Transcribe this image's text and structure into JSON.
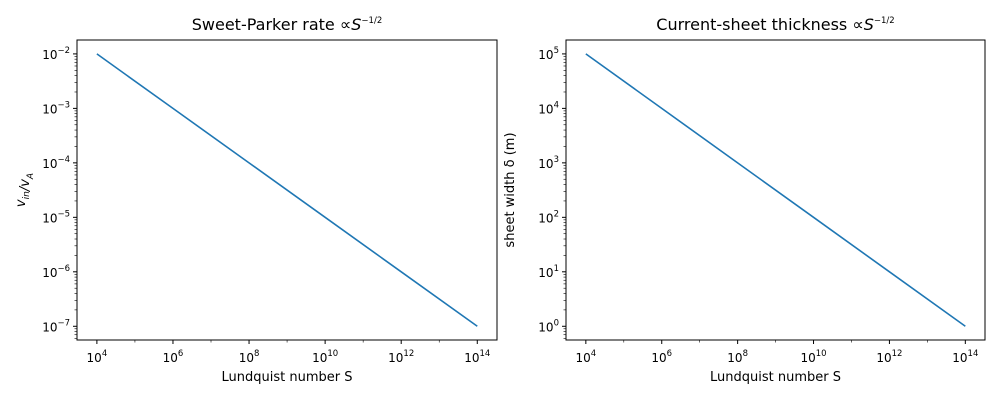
{
  "chart_data": [
    {
      "type": "line",
      "title": "Sweet-Parker rate ∝S⁻¹ᐟ²",
      "xlabel": "Lundquist number S",
      "ylabel": "v_in/v_A",
      "xscale": "log",
      "yscale": "log",
      "xlim": [
        3000.0,
        330000000000000.0
      ],
      "ylim": [
        5.6e-08,
        0.018
      ],
      "xticks": [
        10000.0,
        1000000.0,
        100000000.0,
        10000000000.0,
        1000000000000.0,
        100000000000000.0
      ],
      "xtick_labels": [
        "10^4",
        "10^6",
        "10^8",
        "10^10",
        "10^12",
        "10^14"
      ],
      "yticks": [
        1e-07,
        1e-06,
        1e-05,
        0.0001,
        0.001,
        0.01
      ],
      "ytick_labels": [
        "10^-7",
        "10^-6",
        "10^-5",
        "10^-4",
        "10^-3",
        "10^-2"
      ],
      "grid": false,
      "series": [
        {
          "x": [
            10000.0,
            1000000.0,
            100000000.0,
            10000000000.0,
            1000000000000.0,
            100000000000000.0
          ],
          "y": [
            0.01,
            0.001,
            0.0001,
            1e-05,
            1e-06,
            1e-07
          ],
          "color": "#1f77b4"
        }
      ]
    },
    {
      "type": "line",
      "title": "Current-sheet thickness ∝S⁻¹ᐟ²",
      "xlabel": "Lundquist number S",
      "ylabel": "sheet width δ (m)",
      "xscale": "log",
      "yscale": "log",
      "xlim": [
        3000.0,
        330000000000000.0
      ],
      "ylim": [
        0.56,
        180000.0
      ],
      "xticks": [
        10000.0,
        1000000.0,
        100000000.0,
        10000000000.0,
        1000000000000.0,
        100000000000000.0
      ],
      "xtick_labels": [
        "10^4",
        "10^6",
        "10^8",
        "10^10",
        "10^12",
        "10^14"
      ],
      "yticks": [
        1,
        10,
        100,
        1000,
        10000,
        100000
      ],
      "ytick_labels": [
        "10^0",
        "10^1",
        "10^2",
        "10^3",
        "10^4",
        "10^5"
      ],
      "grid": false,
      "series": [
        {
          "x": [
            10000.0,
            1000000.0,
            100000000.0,
            10000000000.0,
            1000000000000.0,
            100000000000000.0
          ],
          "y": [
            100000.0,
            10000.0,
            1000.0,
            100.0,
            10.0,
            1.0
          ],
          "color": "#1f77b4"
        }
      ]
    }
  ]
}
